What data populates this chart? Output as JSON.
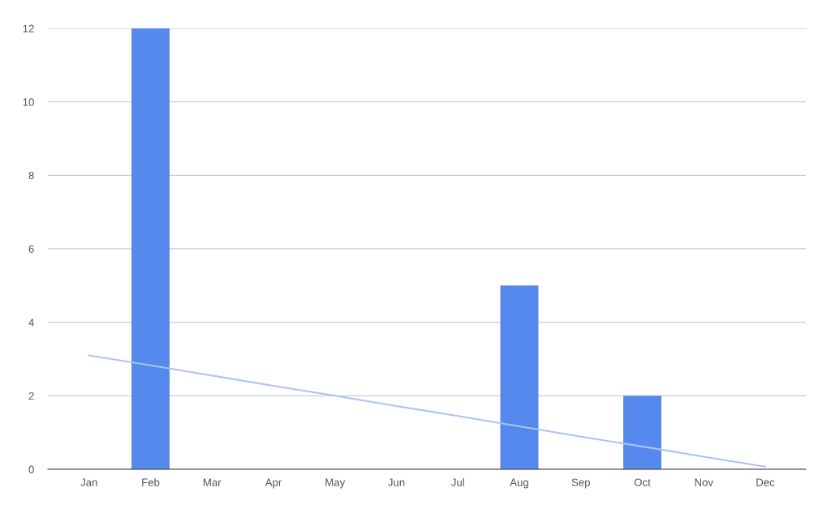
{
  "chart_data": {
    "type": "bar",
    "categories": [
      "Jan",
      "Feb",
      "Mar",
      "Apr",
      "May",
      "Jun",
      "Jul",
      "Aug",
      "Sep",
      "Oct",
      "Nov",
      "Dec"
    ],
    "series": [
      {
        "color": "#5589ee",
        "values": [
          0,
          12,
          0,
          0,
          0,
          0,
          0,
          5,
          0,
          2,
          0,
          0
        ]
      },
      {
        "type": "line",
        "color": "#a8c4f6",
        "values": [
          3.1,
          2.83,
          2.55,
          2.27,
          2,
          1.72,
          1.45,
          1.17,
          0.89,
          0.62,
          0.34,
          0.07
        ]
      }
    ],
    "ylim": [
      0,
      12
    ],
    "yticks": [
      0,
      2,
      4,
      6,
      8,
      10,
      12
    ],
    "grid": "y",
    "legend": false
  }
}
